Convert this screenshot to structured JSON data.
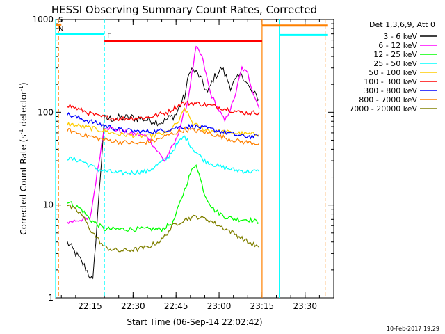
{
  "chart_data": {
    "type": "line",
    "title": "HESSI Observing Summary Count Rates, Corrected",
    "xlabel": "Start Time (06-Sep-14 22:02:42)",
    "ylabel_main": "Corrected Count Rate (s",
    "ylabel_sup1": "-1",
    "ylabel_mid": " detector",
    "ylabel_sup2": "-1",
    "ylabel_end": ")",
    "yscale": "log",
    "xlim": [
      "22:03",
      "23:40"
    ],
    "ylim": [
      1,
      1000
    ],
    "xticks": [
      "22:15",
      "22:30",
      "22:45",
      "23:00",
      "23:15",
      "23:30"
    ],
    "yticks": [
      "1",
      "10",
      "100",
      "1000"
    ],
    "timestamp": "10-Feb-2017 19:29",
    "legend_title": "Det 1,3,6,9, Att 0",
    "legend_position": "right",
    "series": [
      {
        "name": "3 - 6 keV",
        "color": "#000000",
        "points": [
          [
            "22:07",
            4
          ],
          [
            "22:10",
            3
          ],
          [
            "22:13",
            2.2
          ],
          [
            "22:16",
            1.5
          ],
          [
            "22:20",
            85
          ],
          [
            "22:30",
            88
          ],
          [
            "22:40",
            78
          ],
          [
            "22:45",
            95
          ],
          [
            "22:48",
            150
          ],
          [
            "22:50",
            300
          ],
          [
            "22:53",
            250
          ],
          [
            "22:56",
            160
          ],
          [
            "22:58",
            230
          ],
          [
            "23:01",
            300
          ],
          [
            "23:04",
            190
          ],
          [
            "23:08",
            260
          ],
          [
            "23:11",
            170
          ],
          [
            "23:14",
            140
          ]
        ]
      },
      {
        "name": "6 - 12 keV",
        "color": "#ff00ff",
        "points": [
          [
            "22:07",
            6.5
          ],
          [
            "22:12",
            7
          ],
          [
            "22:15",
            7
          ],
          [
            "22:20",
            70
          ],
          [
            "22:28",
            60
          ],
          [
            "22:35",
            55
          ],
          [
            "22:38",
            40
          ],
          [
            "22:41",
            30
          ],
          [
            "22:45",
            50
          ],
          [
            "22:49",
            130
          ],
          [
            "22:52",
            500
          ],
          [
            "22:54",
            400
          ],
          [
            "22:57",
            160
          ],
          [
            "22:59",
            120
          ],
          [
            "23:02",
            80
          ],
          [
            "23:05",
            130
          ],
          [
            "23:08",
            300
          ],
          [
            "23:10",
            260
          ],
          [
            "23:12",
            160
          ],
          [
            "23:14",
            110
          ]
        ]
      },
      {
        "name": "12 - 25 keV",
        "color": "#00ff00",
        "points": [
          [
            "22:07",
            11
          ],
          [
            "22:12",
            9
          ],
          [
            "22:15",
            7
          ],
          [
            "22:20",
            5.5
          ],
          [
            "22:30",
            5.5
          ],
          [
            "22:40",
            5.5
          ],
          [
            "22:44",
            6.5
          ],
          [
            "22:47",
            12
          ],
          [
            "22:50",
            22
          ],
          [
            "22:52",
            28
          ],
          [
            "22:55",
            13
          ],
          [
            "22:58",
            9
          ],
          [
            "23:02",
            7.5
          ],
          [
            "23:06",
            7
          ],
          [
            "23:10",
            7
          ],
          [
            "23:14",
            6.5
          ]
        ]
      },
      {
        "name": "25 - 50 keV",
        "color": "#00ffff",
        "points": [
          [
            "22:07",
            32
          ],
          [
            "22:12",
            30
          ],
          [
            "22:18",
            24
          ],
          [
            "22:25",
            22
          ],
          [
            "22:35",
            23
          ],
          [
            "22:42",
            32
          ],
          [
            "22:46",
            48
          ],
          [
            "22:48",
            55
          ],
          [
            "22:51",
            40
          ],
          [
            "22:55",
            30
          ],
          [
            "23:00",
            26
          ],
          [
            "23:05",
            24
          ],
          [
            "23:10",
            23
          ],
          [
            "23:14",
            23
          ]
        ]
      },
      {
        "name": "50 - 100 keV",
        "color": "#ffcc00",
        "points": [
          [
            "22:07",
            75
          ],
          [
            "22:15",
            68
          ],
          [
            "22:25",
            58
          ],
          [
            "22:35",
            55
          ],
          [
            "22:42",
            60
          ],
          [
            "22:46",
            80
          ],
          [
            "22:48",
            110
          ],
          [
            "22:51",
            75
          ],
          [
            "22:55",
            65
          ],
          [
            "23:00",
            62
          ],
          [
            "23:05",
            60
          ],
          [
            "23:10",
            58
          ],
          [
            "23:14",
            58
          ]
        ]
      },
      {
        "name": "100 - 300 keV",
        "color": "#ff0000",
        "points": [
          [
            "22:07",
            120
          ],
          [
            "22:12",
            105
          ],
          [
            "22:18",
            90
          ],
          [
            "22:25",
            85
          ],
          [
            "22:35",
            88
          ],
          [
            "22:42",
            100
          ],
          [
            "22:47",
            125
          ],
          [
            "22:52",
            125
          ],
          [
            "22:57",
            118
          ],
          [
            "23:02",
            110
          ],
          [
            "23:07",
            100
          ],
          [
            "23:10",
            98
          ],
          [
            "23:14",
            100
          ]
        ]
      },
      {
        "name": "300 - 800 keV",
        "color": "#0000ff",
        "points": [
          [
            "22:07",
            95
          ],
          [
            "22:12",
            85
          ],
          [
            "22:18",
            75
          ],
          [
            "22:25",
            65
          ],
          [
            "22:32",
            62
          ],
          [
            "22:38",
            62
          ],
          [
            "22:42",
            65
          ],
          [
            "22:47",
            70
          ],
          [
            "22:52",
            70
          ],
          [
            "22:58",
            65
          ],
          [
            "23:03",
            60
          ],
          [
            "23:08",
            55
          ],
          [
            "23:12",
            55
          ],
          [
            "23:14",
            55
          ]
        ]
      },
      {
        "name": "800 - 7000 keV",
        "color": "#ff8000",
        "points": [
          [
            "22:07",
            65
          ],
          [
            "22:12",
            58
          ],
          [
            "22:18",
            52
          ],
          [
            "22:25",
            48
          ],
          [
            "22:32",
            46
          ],
          [
            "22:38",
            50
          ],
          [
            "22:43",
            58
          ],
          [
            "22:48",
            65
          ],
          [
            "22:53",
            63
          ],
          [
            "22:58",
            58
          ],
          [
            "23:03",
            52
          ],
          [
            "23:08",
            48
          ],
          [
            "23:14",
            46
          ]
        ]
      },
      {
        "name": "7000 - 20000 keV",
        "color": "#808000",
        "points": [
          [
            "22:07",
            10
          ],
          [
            "22:12",
            8
          ],
          [
            "22:15",
            5.5
          ],
          [
            "22:20",
            3.5
          ],
          [
            "22:25",
            3.2
          ],
          [
            "22:30",
            3.3
          ],
          [
            "22:35",
            3.5
          ],
          [
            "22:40",
            4.2
          ],
          [
            "22:44",
            6
          ],
          [
            "22:48",
            7
          ],
          [
            "22:52",
            7.5
          ],
          [
            "22:56",
            7
          ],
          [
            "23:00",
            6
          ],
          [
            "23:05",
            5
          ],
          [
            "23:10",
            4
          ],
          [
            "23:14",
            3.5
          ]
        ]
      }
    ],
    "flags": [
      {
        "label": "S",
        "color": "#ff8000",
        "x_start": "22:03",
        "x_end": "22:05",
        "level": 880
      },
      {
        "label": "N",
        "color": "#00ffff",
        "x_start": "22:03",
        "x_end": "22:20",
        "level": 700
      },
      {
        "label": "F",
        "color": "#ff0000",
        "x_start": "22:20",
        "x_end": "23:15",
        "level": 590
      },
      {
        "label": "",
        "color": "#ff8000",
        "x_start": "23:15",
        "x_end": "23:38",
        "level": 860
      },
      {
        "label": "",
        "color": "#00ffff",
        "x_start": "23:21",
        "x_end": "23:38",
        "level": 680
      }
    ],
    "vlines": [
      {
        "x": "22:03",
        "color": "#00ffff",
        "style": "solid"
      },
      {
        "x": "22:04",
        "color": "#ff8000",
        "style": "dashed"
      },
      {
        "x": "22:20",
        "color": "#00ffff",
        "style": "dashed"
      },
      {
        "x": "23:15",
        "color": "#ff8000",
        "style": "solid"
      },
      {
        "x": "23:21",
        "color": "#00ffff",
        "style": "solid"
      },
      {
        "x": "23:37",
        "color": "#ff8000",
        "style": "dashed"
      }
    ]
  }
}
